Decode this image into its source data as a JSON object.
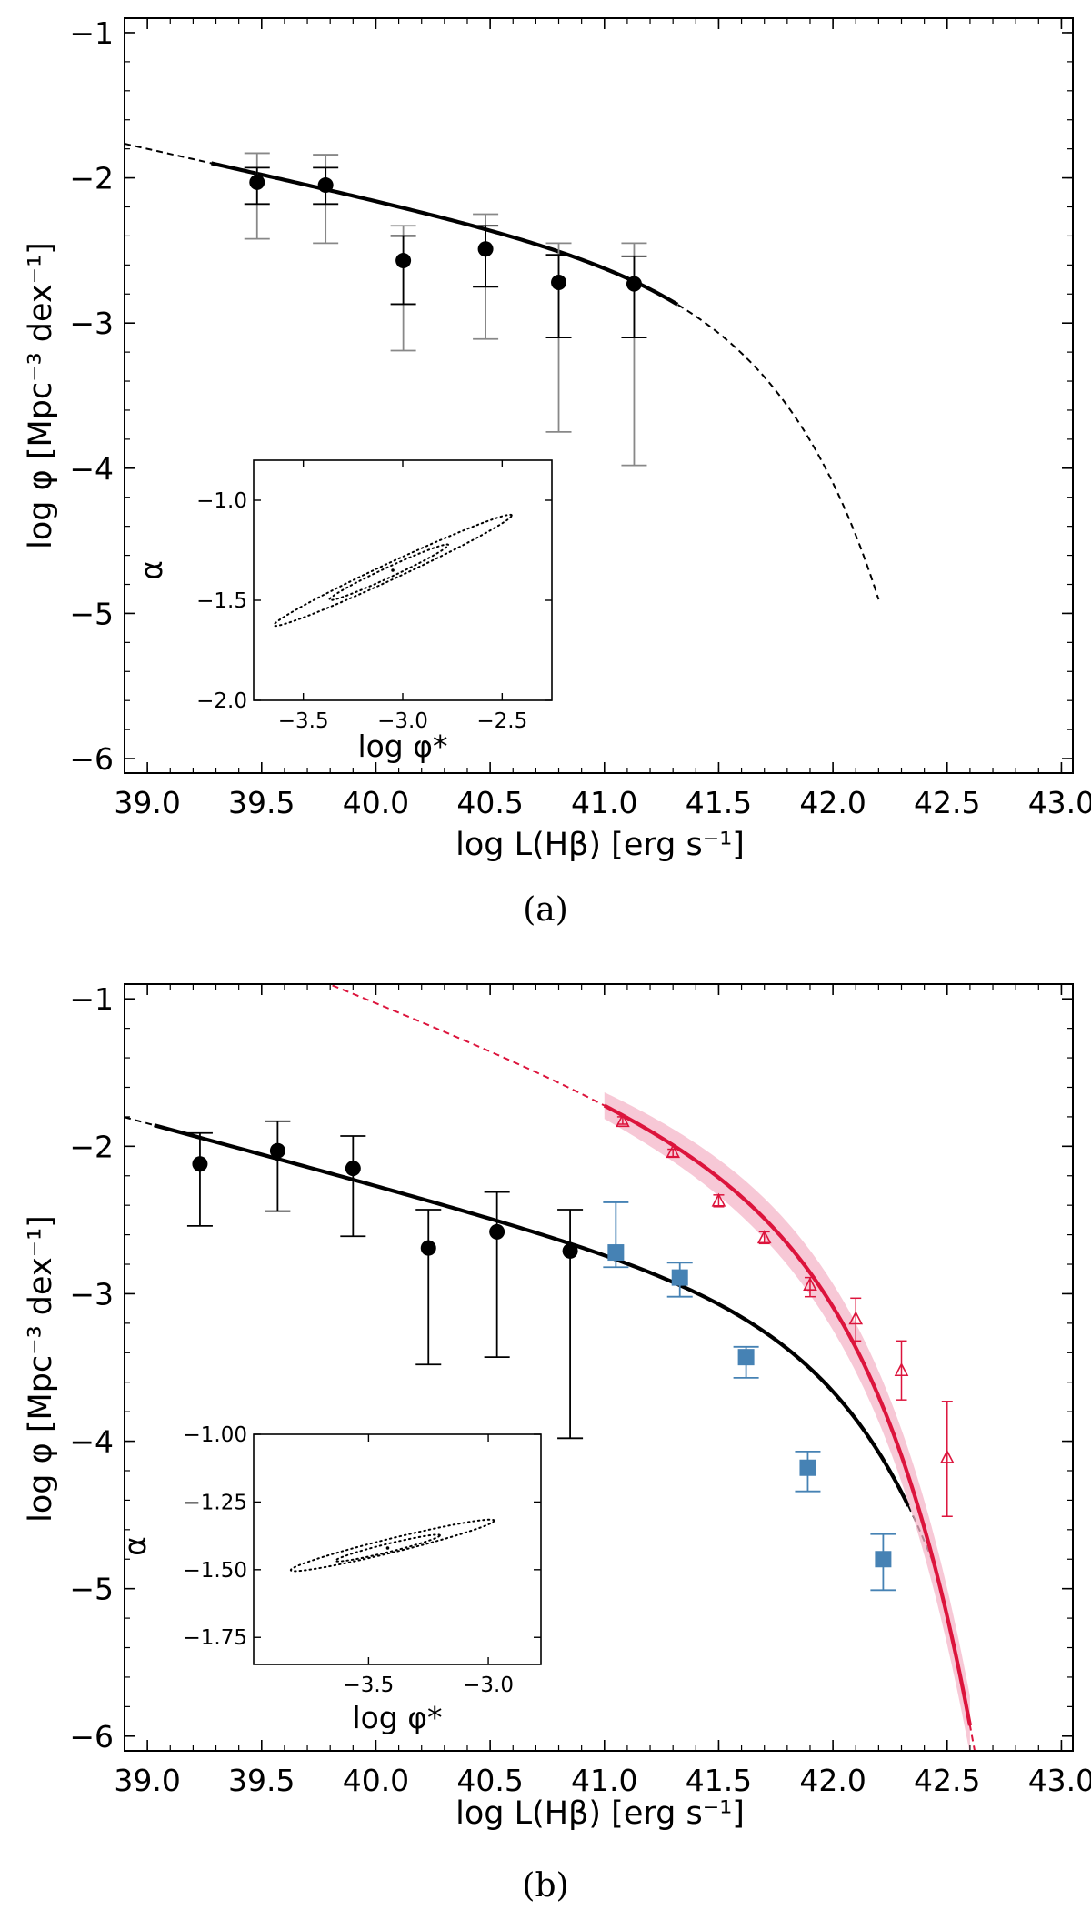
{
  "chart_data": [
    {
      "panel": "a",
      "type": "line",
      "caption": "(a)",
      "xlabel": "log L(Hβ) [erg s⁻¹]",
      "ylabel": "log φ [Mpc⁻³ dex⁻¹]",
      "xlim": [
        38.9,
        43.05
      ],
      "ylim": [
        -6.1,
        -0.9
      ],
      "xticks": [
        39.0,
        39.5,
        40.0,
        40.5,
        41.0,
        41.5,
        42.0,
        42.5,
        43.0
      ],
      "xtick_labels": [
        "39.0",
        "39.5",
        "40.0",
        "40.5",
        "41.0",
        "41.5",
        "42.0",
        "42.5",
        "43.0"
      ],
      "yticks": [
        -1,
        -2,
        -3,
        -4,
        -5,
        -6
      ],
      "ytick_labels": [
        "−1",
        "−2",
        "−3",
        "−4",
        "−5",
        "−6"
      ],
      "schechter": {
        "log_phi_star": -3.05,
        "alpha": -1.35,
        "log_L_star": 41.54,
        "solid_range": [
          39.28,
          41.32
        ],
        "dashed_range": [
          38.9,
          42.2
        ],
        "color": "#000000"
      },
      "points": {
        "color": "#000000",
        "marker": "circle",
        "x": [
          39.48,
          39.78,
          40.12,
          40.48,
          40.8,
          41.13
        ],
        "y": [
          -2.03,
          -2.05,
          -2.57,
          -2.49,
          -2.72,
          -2.73
        ],
        "err_low": [
          -2.18,
          -2.18,
          -2.87,
          -2.75,
          -3.1,
          -3.1
        ],
        "err_high": [
          -1.93,
          -1.93,
          -2.4,
          -2.33,
          -2.53,
          -2.54
        ],
        "sys_low": [
          -2.42,
          -2.45,
          -3.19,
          -3.11,
          -3.75,
          -3.98
        ],
        "sys_high": [
          -1.83,
          -1.84,
          -2.33,
          -2.25,
          -2.45,
          -2.45
        ]
      },
      "inset": {
        "xlabel": "log φ*",
        "ylabel": "α",
        "xlim": [
          -3.75,
          -2.25
        ],
        "ylim": [
          -2.0,
          -0.8
        ],
        "xticks": [
          -3.5,
          -3.0,
          -2.5
        ],
        "xtick_labels": [
          "−3.5",
          "−3.0",
          "−2.5"
        ],
        "yticks": [
          -1.0,
          -1.5,
          -2.0
        ],
        "ytick_labels": [
          "−1.0",
          "−1.5",
          "−2.0"
        ],
        "best_fit": [
          -3.05,
          -1.35
        ],
        "contours": [
          {
            "level": "1sigma",
            "center": [
              -3.07,
              -1.36
            ],
            "semi_major": 0.46,
            "semi_minor": 0.04,
            "angle_deg": 30
          },
          {
            "level": "2sigma",
            "center": [
              -3.05,
              -1.35
            ],
            "semi_major": 0.92,
            "semi_minor": 0.065,
            "angle_deg": 30
          }
        ]
      }
    },
    {
      "panel": "b",
      "type": "line",
      "caption": "(b)",
      "xlabel": "log L(Hβ) [erg s⁻¹]",
      "ylabel": "log φ [Mpc⁻³ dex⁻¹]",
      "xlim": [
        38.9,
        43.05
      ],
      "ylim": [
        -6.1,
        -0.9
      ],
      "xticks": [
        39.0,
        39.5,
        40.0,
        40.5,
        41.0,
        41.5,
        42.0,
        42.5,
        43.0
      ],
      "xtick_labels": [
        "39.0",
        "39.5",
        "40.0",
        "40.5",
        "41.0",
        "41.5",
        "42.0",
        "42.5",
        "43.0"
      ],
      "yticks": [
        -1,
        -2,
        -3,
        -4,
        -5,
        -6
      ],
      "ytick_labels": [
        "−1",
        "−2",
        "−3",
        "−4",
        "−5",
        "−6"
      ],
      "series": [
        {
          "name": "fit-black",
          "kind": "schechter",
          "color": "#000000",
          "log_phi_star": -3.42,
          "alpha": -1.42,
          "log_L_star": 41.89,
          "solid_range": [
            39.03,
            42.33
          ],
          "dashed_range": [
            38.9,
            42.44
          ]
        },
        {
          "name": "fit-red",
          "kind": "schechter",
          "color": "#dc143c",
          "log_phi_star": -2.45,
          "alpha": -1.62,
          "log_L_star": 41.72,
          "solid_range": [
            41.0,
            42.6
          ],
          "dashed_range": [
            39.5,
            42.68
          ],
          "band_halfwidth": 0.09,
          "band_color": "#f4b6c8"
        },
        {
          "name": "points-black",
          "kind": "points",
          "marker": "circle",
          "color": "#000000",
          "x": [
            39.23,
            39.57,
            39.9,
            40.23,
            40.53,
            40.85
          ],
          "y": [
            -2.12,
            -2.03,
            -2.15,
            -2.69,
            -2.58,
            -2.71
          ],
          "err_low": [
            -2.54,
            -2.44,
            -2.61,
            -3.48,
            -3.43,
            -3.98
          ],
          "err_high": [
            -1.91,
            -1.83,
            -1.93,
            -2.43,
            -2.31,
            -2.43
          ]
        },
        {
          "name": "points-blue",
          "kind": "points",
          "marker": "square",
          "color": "#4682b4",
          "x": [
            41.05,
            41.33,
            41.62,
            41.89,
            42.22
          ],
          "y": [
            -2.72,
            -2.89,
            -3.43,
            -4.18,
            -4.8
          ],
          "err_low": [
            -2.82,
            -3.02,
            -3.57,
            -4.34,
            -5.01
          ],
          "err_high": [
            -2.38,
            -2.79,
            -3.36,
            -4.07,
            -4.63
          ]
        },
        {
          "name": "points-red",
          "kind": "points",
          "marker": "triangle-open",
          "color": "#dc143c",
          "x": [
            41.08,
            41.3,
            41.5,
            41.7,
            41.9,
            42.1,
            42.3,
            42.5
          ],
          "y": [
            -1.83,
            -2.04,
            -2.37,
            -2.62,
            -2.94,
            -3.17,
            -3.52,
            -4.11
          ],
          "err_low": [
            -1.85,
            -2.07,
            -2.41,
            -2.66,
            -3.02,
            -3.32,
            -3.72,
            -4.51
          ],
          "err_high": [
            -1.8,
            -2.02,
            -2.33,
            -2.58,
            -2.89,
            -3.03,
            -3.32,
            -3.73
          ]
        }
      ],
      "inset": {
        "xlabel": "log φ*",
        "ylabel": "α",
        "xlim": [
          -3.98,
          -2.78
        ],
        "ylim": [
          -1.85,
          -1.0
        ],
        "xticks": [
          -3.5,
          -3.0
        ],
        "xtick_labels": [
          "−3.5",
          "−3.0"
        ],
        "yticks": [
          -1.0,
          -1.25,
          -1.5,
          -1.75
        ],
        "ytick_labels": [
          "−1.00",
          "−1.25",
          "−1.50",
          "−1.75"
        ],
        "best_fit": [
          -3.42,
          -1.42
        ],
        "contours": [
          {
            "level": "1sigma",
            "center": [
              -3.42,
              -1.42
            ],
            "semi_major": 0.38,
            "semi_minor": 0.035,
            "angle_deg": 17
          },
          {
            "level": "2sigma",
            "center": [
              -3.4,
              -1.41
            ],
            "semi_major": 0.74,
            "semi_minor": 0.06,
            "angle_deg": 17
          }
        ]
      }
    }
  ]
}
